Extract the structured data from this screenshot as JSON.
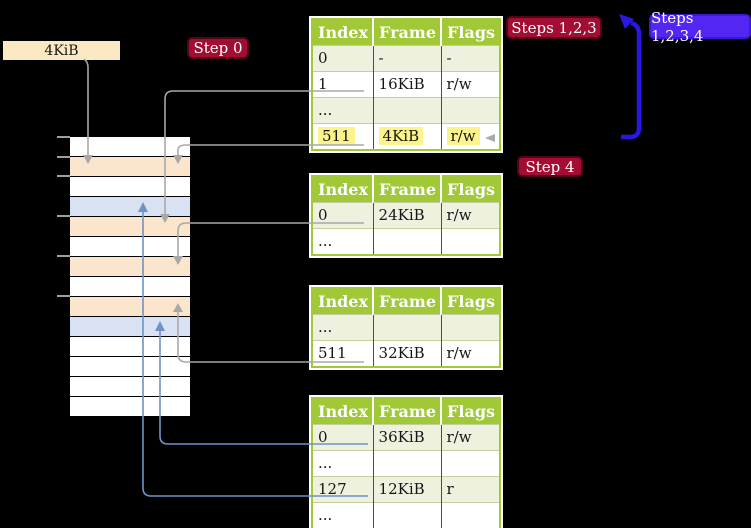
{
  "diagram": {
    "frame_label": "4KiB",
    "badges": {
      "step0": "Step 0",
      "steps123": "Steps 1,2,3",
      "steps1234": "Steps 1,2,3,4",
      "step4": "Step 4"
    },
    "colors": {
      "background": "#000000",
      "table_header_green": "#a0c837",
      "table_row_stripe": "#edf1dd",
      "highlight_yellow": "#fdf38c",
      "frame_label_cream": "#fbe9c4",
      "memory_table_frame_peach": "#fce5cd",
      "memory_page_frame_blue": "#d9e2f3",
      "memory_free_frame_white": "#ffffff",
      "badge_red": "#a30c33",
      "badge_blue": "#5326f3",
      "big_arrow_blue": "#2a17e6",
      "connector_gray": "#a8a8a8",
      "connector_blue": "#6f93c5"
    },
    "memory_stack": {
      "rows": [
        {
          "type": "free"
        },
        {
          "type": "table"
        },
        {
          "type": "free"
        },
        {
          "type": "page"
        },
        {
          "type": "table"
        },
        {
          "type": "free"
        },
        {
          "type": "table"
        },
        {
          "type": "free"
        },
        {
          "type": "table"
        },
        {
          "type": "page"
        },
        {
          "type": "free"
        },
        {
          "type": "free"
        },
        {
          "type": "free"
        },
        {
          "type": "free"
        }
      ]
    },
    "page_tables": [
      {
        "name": "page-table-top",
        "headers": [
          "Index",
          "Frame",
          "Flags"
        ],
        "rows": [
          {
            "cells": [
              "0",
              "-",
              "-"
            ],
            "highlight": false
          },
          {
            "cells": [
              "1",
              "16KiB",
              "r/w"
            ],
            "highlight": false
          },
          {
            "cells": [
              "...",
              "",
              ""
            ],
            "highlight": false
          },
          {
            "cells": [
              "511",
              "4KiB",
              "r/w"
            ],
            "highlight": true
          }
        ]
      },
      {
        "name": "page-table-second",
        "headers": [
          "Index",
          "Frame",
          "Flags"
        ],
        "rows": [
          {
            "cells": [
              "0",
              "24KiB",
              "r/w"
            ],
            "highlight": false
          },
          {
            "cells": [
              "...",
              "",
              ""
            ],
            "highlight": false
          }
        ]
      },
      {
        "name": "page-table-third",
        "headers": [
          "Index",
          "Frame",
          "Flags"
        ],
        "rows": [
          {
            "cells": [
              "...",
              "",
              ""
            ],
            "highlight": false
          },
          {
            "cells": [
              "511",
              "32KiB",
              "r/w"
            ],
            "highlight": false
          }
        ]
      },
      {
        "name": "page-table-bottom",
        "headers": [
          "Index",
          "Frame",
          "Flags"
        ],
        "rows": [
          {
            "cells": [
              "0",
              "36KiB",
              "r/w"
            ],
            "highlight": false
          },
          {
            "cells": [
              "...",
              "",
              ""
            ],
            "highlight": false
          },
          {
            "cells": [
              "127",
              "12KiB",
              "r"
            ],
            "highlight": false
          },
          {
            "cells": [
              "...",
              "",
              ""
            ],
            "highlight": false
          }
        ]
      }
    ]
  }
}
